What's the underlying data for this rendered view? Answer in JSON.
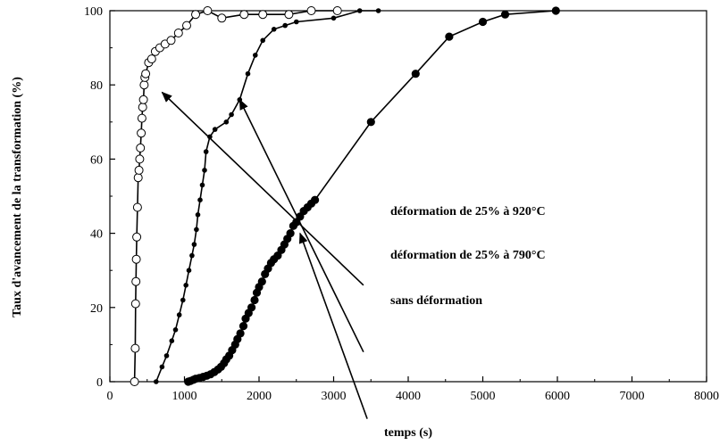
{
  "chart_data": {
    "type": "line",
    "xlabel": "temps (s)",
    "ylabel": "Taux d'avancement de la transformation (%)",
    "xlim": [
      0,
      8000
    ],
    "ylim": [
      0,
      100
    ],
    "xticks": [
      "0",
      "1000",
      "2000",
      "3000",
      "4000",
      "5000",
      "6000",
      "7000",
      "8000"
    ],
    "yticks": [
      "0",
      "20",
      "40",
      "60",
      "80",
      "100"
    ],
    "grid": false,
    "series": [
      {
        "marker": "open-circle",
        "points": [
          [
            330,
            0
          ],
          [
            340,
            9
          ],
          [
            345,
            21
          ],
          [
            350,
            27
          ],
          [
            355,
            33
          ],
          [
            360,
            39
          ],
          [
            370,
            47
          ],
          [
            380,
            55
          ],
          [
            390,
            57
          ],
          [
            400,
            60
          ],
          [
            410,
            63
          ],
          [
            420,
            67
          ],
          [
            430,
            71
          ],
          [
            440,
            74
          ],
          [
            450,
            76
          ],
          [
            460,
            80
          ],
          [
            470,
            82
          ],
          [
            480,
            83
          ],
          [
            520,
            86
          ],
          [
            560,
            87
          ],
          [
            610,
            89
          ],
          [
            670,
            90
          ],
          [
            740,
            91
          ],
          [
            820,
            92
          ],
          [
            920,
            94
          ],
          [
            1030,
            96
          ],
          [
            1150,
            99
          ],
          [
            1310,
            100
          ],
          [
            1500,
            98
          ],
          [
            1800,
            99
          ],
          [
            2050,
            99
          ],
          [
            2400,
            99
          ],
          [
            2700,
            100
          ],
          [
            3050,
            100
          ]
        ]
      },
      {
        "marker": "small-dot",
        "points": [
          [
            620,
            0
          ],
          [
            700,
            4
          ],
          [
            760,
            7
          ],
          [
            830,
            11
          ],
          [
            880,
            14
          ],
          [
            930,
            18
          ],
          [
            980,
            22
          ],
          [
            1020,
            26
          ],
          [
            1060,
            30
          ],
          [
            1100,
            34
          ],
          [
            1130,
            37
          ],
          [
            1160,
            41
          ],
          [
            1180,
            45
          ],
          [
            1210,
            49
          ],
          [
            1240,
            53
          ],
          [
            1270,
            57
          ],
          [
            1290,
            62
          ],
          [
            1340,
            66
          ],
          [
            1410,
            68
          ],
          [
            1560,
            70
          ],
          [
            1630,
            72
          ],
          [
            1740,
            76
          ],
          [
            1850,
            83
          ],
          [
            1950,
            88
          ],
          [
            2050,
            92
          ],
          [
            2200,
            95
          ],
          [
            2350,
            96
          ],
          [
            2500,
            97
          ],
          [
            3000,
            98
          ],
          [
            3350,
            100
          ],
          [
            3600,
            100
          ]
        ]
      },
      {
        "marker": "filled-circle",
        "points": [
          [
            1050,
            0
          ],
          [
            1080,
            0.2
          ],
          [
            1120,
            0.5
          ],
          [
            1150,
            0.8
          ],
          [
            1200,
            1
          ],
          [
            1250,
            1.3
          ],
          [
            1300,
            1.6
          ],
          [
            1350,
            2
          ],
          [
            1400,
            2.6
          ],
          [
            1450,
            3.3
          ],
          [
            1490,
            4
          ],
          [
            1530,
            5
          ],
          [
            1560,
            6
          ],
          [
            1600,
            7
          ],
          [
            1640,
            8.5
          ],
          [
            1680,
            10
          ],
          [
            1710,
            11.5
          ],
          [
            1750,
            13
          ],
          [
            1790,
            15
          ],
          [
            1820,
            17
          ],
          [
            1860,
            18.5
          ],
          [
            1900,
            20
          ],
          [
            1940,
            22
          ],
          [
            1970,
            24
          ],
          [
            2000,
            25.5
          ],
          [
            2040,
            27
          ],
          [
            2080,
            29
          ],
          [
            2120,
            30.5
          ],
          [
            2160,
            32
          ],
          [
            2200,
            33
          ],
          [
            2250,
            34
          ],
          [
            2300,
            35.5
          ],
          [
            2340,
            37
          ],
          [
            2380,
            38.5
          ],
          [
            2420,
            40
          ],
          [
            2460,
            42
          ],
          [
            2500,
            43
          ],
          [
            2550,
            44.5
          ],
          [
            2600,
            46
          ],
          [
            2650,
            47
          ],
          [
            2700,
            48
          ],
          [
            2750,
            49
          ],
          [
            3500,
            70
          ],
          [
            4100,
            83
          ],
          [
            4550,
            93
          ],
          [
            5000,
            97
          ],
          [
            5300,
            99
          ],
          [
            5980,
            100
          ]
        ]
      }
    ],
    "annotations": [
      {
        "text": "déformation de 25% à 920°C",
        "from": [
          3400,
          26
        ],
        "to": [
          700,
          78
        ]
      },
      {
        "text": "déformation de 25% à 790°C",
        "from": [
          3400,
          8
        ],
        "to": [
          1740,
          76
        ]
      },
      {
        "text": "sans déformation",
        "from": [
          3450,
          -10
        ],
        "to": [
          2550,
          40
        ]
      }
    ]
  }
}
